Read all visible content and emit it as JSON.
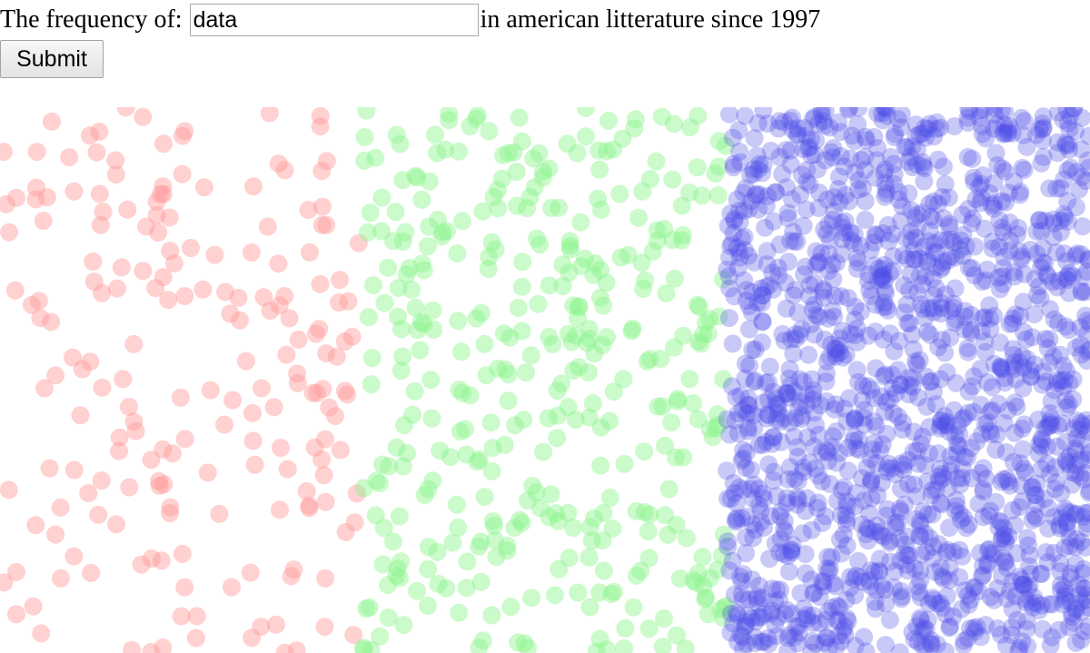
{
  "query": {
    "prefix": "The frequency of:",
    "input_value": "data",
    "suffix": "in american litterature since 1997"
  },
  "form": {
    "submit_label": "Submit"
  },
  "bands": [
    {
      "name": "red",
      "color": "#ff9a9a",
      "point_count": 195
    },
    {
      "name": "green",
      "color": "#8cf48c",
      "point_count": 390
    },
    {
      "name": "blue",
      "color": "#4d4de8",
      "point_count": 1550
    }
  ]
}
